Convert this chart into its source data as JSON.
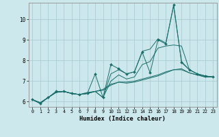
{
  "xlabel": "Humidex (Indice chaleur)",
  "background_color": "#cce8ec",
  "grid_color": "#aacdd4",
  "line_color": "#1a6e6a",
  "xlim": [
    -0.5,
    23.5
  ],
  "ylim": [
    5.75,
    10.8
  ],
  "xticks": [
    0,
    1,
    2,
    3,
    4,
    5,
    6,
    7,
    8,
    9,
    10,
    11,
    12,
    13,
    14,
    15,
    16,
    17,
    18,
    19,
    20,
    21,
    22,
    23
  ],
  "yticks": [
    6,
    7,
    8,
    9,
    10
  ],
  "x": [
    0,
    1,
    2,
    3,
    4,
    5,
    6,
    7,
    8,
    9,
    10,
    11,
    12,
    13,
    14,
    15,
    16,
    17,
    18,
    19,
    20,
    21,
    22,
    23
  ],
  "series": [
    [
      6.1,
      5.9,
      6.2,
      6.5,
      6.5,
      6.4,
      6.35,
      6.4,
      7.35,
      6.2,
      7.8,
      7.6,
      7.35,
      7.45,
      8.4,
      7.4,
      9.0,
      8.8,
      10.7,
      7.9,
      7.55,
      7.35,
      7.25,
      7.2
    ],
    [
      6.1,
      5.95,
      6.2,
      6.45,
      6.5,
      6.4,
      6.35,
      6.45,
      6.5,
      6.2,
      7.35,
      7.55,
      7.35,
      7.45,
      8.45,
      8.55,
      9.05,
      8.85,
      10.65,
      7.95,
      7.55,
      7.35,
      7.25,
      7.2
    ],
    [
      6.1,
      5.95,
      6.2,
      6.45,
      6.5,
      6.4,
      6.35,
      6.4,
      6.5,
      6.2,
      7.0,
      7.3,
      7.1,
      7.2,
      7.8,
      7.95,
      8.6,
      8.7,
      8.75,
      8.7,
      7.55,
      7.35,
      7.25,
      7.2
    ],
    [
      6.1,
      5.95,
      6.2,
      6.45,
      6.5,
      6.4,
      6.35,
      6.4,
      6.5,
      6.55,
      6.8,
      6.95,
      6.9,
      6.95,
      7.05,
      7.15,
      7.25,
      7.4,
      7.55,
      7.6,
      7.4,
      7.3,
      7.2,
      7.2
    ],
    [
      6.1,
      5.95,
      6.2,
      6.45,
      6.5,
      6.4,
      6.35,
      6.4,
      6.5,
      6.6,
      6.85,
      6.95,
      6.95,
      7.0,
      7.1,
      7.2,
      7.3,
      7.45,
      7.55,
      7.55,
      7.4,
      7.3,
      7.2,
      7.2
    ]
  ]
}
